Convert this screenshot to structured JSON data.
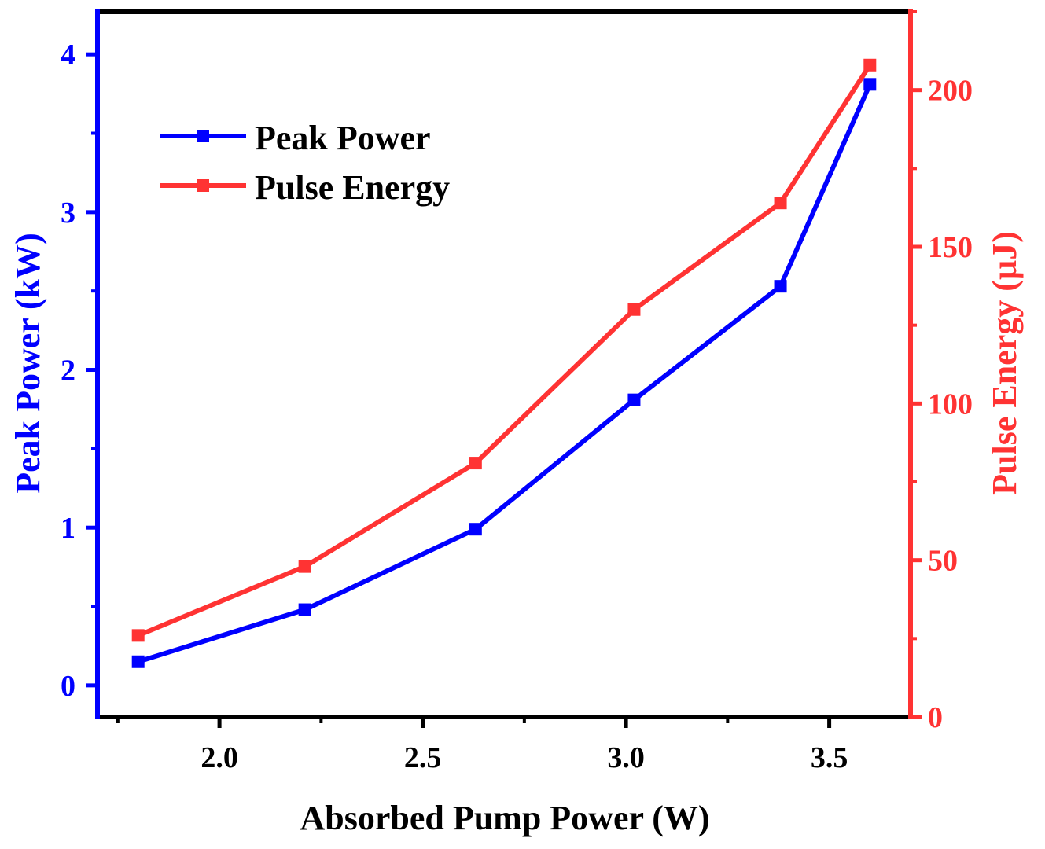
{
  "chart_data": {
    "type": "line",
    "title": "",
    "xlabel": "Absorbed Pump Power (W)",
    "ylabel_left": "Peak Power (kW)",
    "ylabel_right": "Pulse Energy (µJ)",
    "xlim": [
      1.7,
      3.7
    ],
    "ylim_left": [
      -0.2,
      4.27
    ],
    "ylim_right": [
      0,
      225
    ],
    "x_ticks": [
      "2.0",
      "2.5",
      "3.0",
      "3.5"
    ],
    "y_left_ticks": [
      "0",
      "1",
      "2",
      "3",
      "4"
    ],
    "y_right_ticks": [
      "0",
      "50",
      "100",
      "150",
      "200"
    ],
    "legend_position": "top-left",
    "grid": false,
    "series": [
      {
        "name": "Peak Power",
        "axis": "left",
        "color": "#0000ff",
        "x": [
          1.8,
          2.21,
          2.63,
          3.02,
          3.38,
          3.6
        ],
        "values": [
          0.15,
          0.48,
          0.99,
          1.81,
          2.53,
          3.81
        ]
      },
      {
        "name": "Pulse Energy",
        "axis": "right",
        "color": "#ff3333",
        "x": [
          1.8,
          2.21,
          2.63,
          3.02,
          3.38,
          3.6
        ],
        "values": [
          26,
          48,
          81,
          130,
          164,
          208
        ]
      }
    ]
  }
}
